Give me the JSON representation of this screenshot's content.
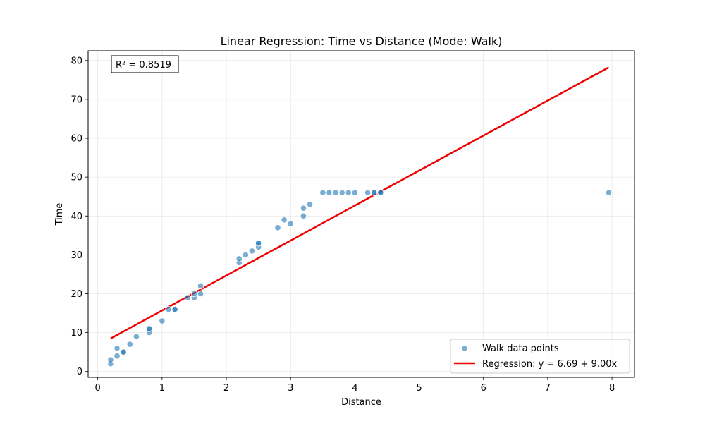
{
  "chart_data": {
    "type": "scatter",
    "title": "Linear Regression: Time vs Distance (Mode: Walk)",
    "xlabel": "Distance",
    "ylabel": "Time",
    "xlim": [
      -0.15,
      8.35
    ],
    "ylim": [
      -1.5,
      82.5
    ],
    "xticks": [
      0,
      1,
      2,
      3,
      4,
      5,
      6,
      7,
      8
    ],
    "yticks": [
      0,
      10,
      20,
      30,
      40,
      50,
      60,
      70,
      80
    ],
    "grid": true,
    "legend_position": "bottom-right",
    "annotation": "R² = 0.8519",
    "series": [
      {
        "name": "Walk data points",
        "kind": "scatter",
        "color": "#1f77b4",
        "points": [
          [
            0.2,
            2
          ],
          [
            0.2,
            3
          ],
          [
            0.3,
            4
          ],
          [
            0.3,
            6
          ],
          [
            0.4,
            5
          ],
          [
            0.4,
            5
          ],
          [
            0.5,
            7
          ],
          [
            0.6,
            9
          ],
          [
            0.8,
            10
          ],
          [
            0.8,
            11
          ],
          [
            0.8,
            11
          ],
          [
            1.0,
            13
          ],
          [
            1.1,
            16
          ],
          [
            1.2,
            16
          ],
          [
            1.2,
            16
          ],
          [
            1.4,
            19
          ],
          [
            1.5,
            19
          ],
          [
            1.5,
            20
          ],
          [
            1.6,
            20
          ],
          [
            1.6,
            22
          ],
          [
            2.2,
            28
          ],
          [
            2.2,
            29
          ],
          [
            2.3,
            30
          ],
          [
            2.4,
            31
          ],
          [
            2.5,
            32
          ],
          [
            2.5,
            33
          ],
          [
            2.5,
            33
          ],
          [
            2.8,
            37
          ],
          [
            2.9,
            39
          ],
          [
            3.0,
            38
          ],
          [
            3.2,
            40
          ],
          [
            3.2,
            42
          ],
          [
            3.3,
            43
          ],
          [
            3.5,
            46
          ],
          [
            3.6,
            46
          ],
          [
            3.7,
            46
          ],
          [
            3.8,
            46
          ],
          [
            3.9,
            46
          ],
          [
            4.0,
            46
          ],
          [
            4.2,
            46
          ],
          [
            4.3,
            46
          ],
          [
            4.3,
            46
          ],
          [
            4.4,
            46
          ],
          [
            4.4,
            46
          ],
          [
            7.95,
            46
          ]
        ]
      },
      {
        "name": "Regression: y = 6.69 + 9.00x",
        "kind": "line",
        "color": "#ee0000",
        "intercept": 6.69,
        "slope": 9.0,
        "x_range": [
          0.2,
          7.95
        ]
      }
    ]
  }
}
